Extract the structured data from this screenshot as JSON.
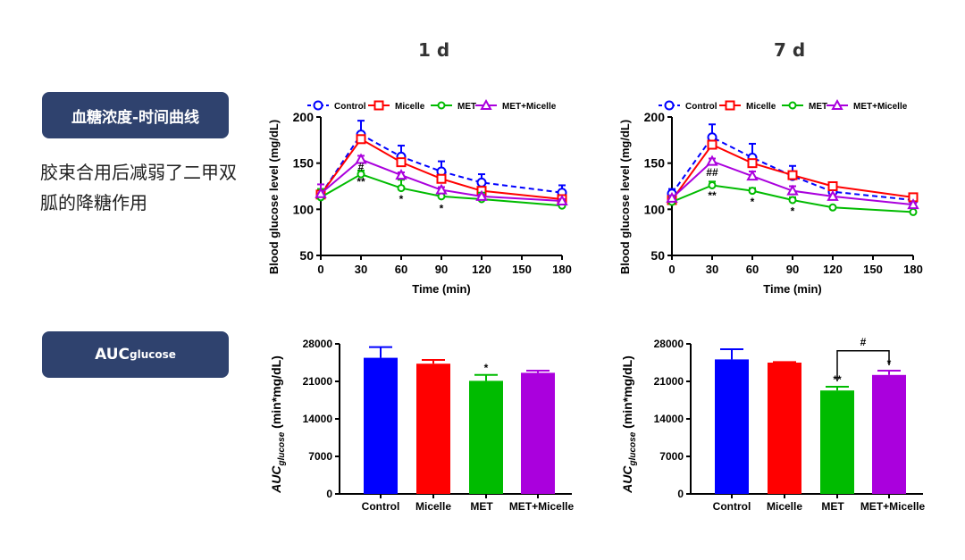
{
  "left_panel": {
    "label1": "血糖浓度-时间曲线",
    "description": "胶束合用后减弱了二甲双胍的降糖作用",
    "label2_main": "AUC",
    "label2_sub": "glucose"
  },
  "periods": [
    "1 d",
    "7 d"
  ],
  "colors": {
    "Control": "#0000ff",
    "Micelle": "#ff0000",
    "MET": "#00bb00",
    "MET+Micelle": "#aa00dd",
    "label_bg": "#2f426e"
  },
  "chart_data": [
    {
      "type": "line",
      "title": "1 d",
      "xlabel": "Time (min)",
      "ylabel": "Blood glucose level (mg/dL)",
      "x": [
        0,
        30,
        60,
        90,
        120,
        180
      ],
      "xticks": [
        0,
        30,
        60,
        90,
        120,
        150,
        180
      ],
      "yticks": [
        50,
        100,
        150,
        200
      ],
      "ylim": [
        50,
        200
      ],
      "xlim": [
        0,
        180
      ],
      "legend": "top",
      "series": [
        {
          "name": "Control",
          "marker": "circle",
          "dashed": true,
          "values": [
            116,
            181,
            157,
            141,
            129,
            118
          ],
          "errors": [
            5,
            15,
            12,
            11,
            9,
            8
          ]
        },
        {
          "name": "Micelle",
          "marker": "square",
          "dashed": false,
          "values": [
            116,
            176,
            151,
            133,
            120,
            111
          ],
          "errors": [
            4,
            3,
            4,
            3,
            2,
            2
          ]
        },
        {
          "name": "MET",
          "marker": "diamond",
          "dashed": false,
          "values": [
            113,
            138,
            123,
            114,
            111,
            104
          ],
          "errors": [
            9,
            4,
            9,
            6,
            7,
            2
          ]
        },
        {
          "name": "MET+Micelle",
          "marker": "triangle",
          "dashed": false,
          "values": [
            117,
            154,
            137,
            121,
            114,
            109
          ],
          "errors": [
            10,
            4,
            3,
            3,
            2,
            2
          ]
        }
      ],
      "annotations": [
        {
          "x": 30,
          "y": 146,
          "text": "#"
        },
        {
          "x": 30,
          "y": 130,
          "text": "**"
        },
        {
          "x": 60,
          "y": 111,
          "text": "*"
        },
        {
          "x": 90,
          "y": 101,
          "text": "*"
        }
      ]
    },
    {
      "type": "line",
      "title": "7 d",
      "xlabel": "Time (min)",
      "ylabel": "Blood glucose level (mg/dL)",
      "x": [
        0,
        30,
        60,
        90,
        120,
        180
      ],
      "xticks": [
        0,
        30,
        60,
        90,
        120,
        150,
        180
      ],
      "yticks": [
        50,
        100,
        150,
        200
      ],
      "ylim": [
        50,
        200
      ],
      "xlim": [
        0,
        180
      ],
      "legend": "top",
      "series": [
        {
          "name": "Control",
          "marker": "circle",
          "dashed": true,
          "values": [
            117,
            178,
            156,
            136,
            119,
            110
          ],
          "errors": [
            5,
            14,
            15,
            11,
            3,
            3
          ]
        },
        {
          "name": "Micelle",
          "marker": "square",
          "dashed": false,
          "values": [
            110,
            170,
            150,
            137,
            125,
            113
          ],
          "errors": [
            3,
            4,
            3,
            3,
            3,
            2
          ]
        },
        {
          "name": "MET",
          "marker": "diamond",
          "dashed": false,
          "values": [
            108,
            126,
            120,
            110,
            102,
            97
          ],
          "errors": [
            6,
            4,
            3,
            3,
            1,
            1
          ]
        },
        {
          "name": "MET+Micelle",
          "marker": "triangle",
          "dashed": false,
          "values": [
            112,
            152,
            136,
            120,
            114,
            105
          ],
          "errors": [
            3,
            3,
            5,
            5,
            2,
            2
          ]
        }
      ],
      "annotations": [
        {
          "x": 30,
          "y": 140,
          "text": "##"
        },
        {
          "x": 30,
          "y": 115,
          "text": "**"
        },
        {
          "x": 60,
          "y": 108,
          "text": "*"
        },
        {
          "x": 90,
          "y": 98,
          "text": "*"
        }
      ]
    },
    {
      "type": "bar",
      "title": "1 d",
      "ylabel": "AUCglucose (min*mg/dL)",
      "categories": [
        "Control",
        "Micelle",
        "MET",
        "MET+Micelle"
      ],
      "values": [
        25400,
        24300,
        21100,
        22600
      ],
      "errors": [
        2000,
        700,
        1100,
        400
      ],
      "yticks": [
        0,
        7000,
        14000,
        21000,
        28000
      ],
      "ylim": [
        0,
        28000
      ],
      "annotations": [
        {
          "category": "MET",
          "text": "*"
        }
      ],
      "bracket": null
    },
    {
      "type": "bar",
      "title": "7 d",
      "ylabel": "AUCglucose (min*mg/dL)",
      "categories": [
        "Control",
        "Micelle",
        "MET",
        "MET+Micelle"
      ],
      "values": [
        25100,
        24500,
        19300,
        22200
      ],
      "errors": [
        1900,
        100,
        700,
        800
      ],
      "yticks": [
        0,
        7000,
        14000,
        21000,
        28000
      ],
      "ylim": [
        0,
        28000
      ],
      "annotations": [
        {
          "category": "MET",
          "text": "**"
        },
        {
          "category": "MET+Micelle",
          "text": "*"
        }
      ],
      "bracket": {
        "from": "MET",
        "to": "MET+Micelle",
        "text": "#"
      }
    }
  ]
}
